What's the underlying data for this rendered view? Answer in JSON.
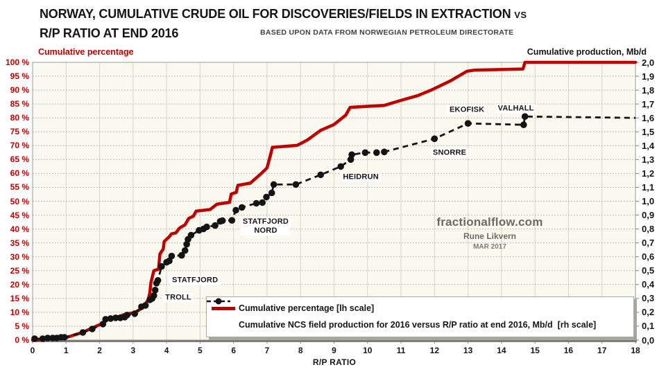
{
  "header": {
    "title_main": "NORWAY, CUMULATIVE CRUDE OIL FOR DISCOVERIES/FIELDS IN EXTRACTION",
    "title_vs": "VS",
    "title_line2": "R/P RATIO AT END 2016",
    "subtitle": "BASED UPON DATA FROM NORWEGIAN PETROLEUM DIRECTORATE"
  },
  "watermark": {
    "site": "fractionalflow.com",
    "author": "Rune Likvern",
    "date": "MAR 2017"
  },
  "legend": {
    "item1": "Cumulative percentage [lh scale]",
    "item2": "Cumulative NCS field production for 2016 versus R/P ratio at end 2016, Mb/d  [rh scale]"
  },
  "chart_data": {
    "type": "line",
    "title": "NORWAY, CUMULATIVE CRUDE OIL FOR DISCOVERIES/FIELDS IN EXTRACTION VS R/P RATIO AT END 2016",
    "grid": {
      "vertical": "solid",
      "horizontal": "dotted"
    },
    "legend_position": "bottom-right-inside",
    "x_axis": {
      "title": "R/P RATIO",
      "min": 0,
      "max": 18,
      "tick_step": 1,
      "tick_labels": [
        "0",
        "1",
        "2",
        "3",
        "4",
        "5",
        "6",
        "7",
        "8",
        "9",
        "10",
        "11",
        "12",
        "13",
        "14",
        "15",
        "16",
        "17",
        "18"
      ]
    },
    "y_left": {
      "title": "Cumulative percentage",
      "min": 0,
      "max": 100,
      "tick_step": 5,
      "color": "#c00000",
      "tick_labels": [
        "0 %",
        "5 %",
        "10 %",
        "15 %",
        "20 %",
        "25 %",
        "30 %",
        "35 %",
        "40 %",
        "45 %",
        "50 %",
        "55 %",
        "60 %",
        "65 %",
        "70 %",
        "75 %",
        "80 %",
        "85 %",
        "90 %",
        "95 %",
        "100 %"
      ]
    },
    "y_right": {
      "title": "Cumulative production, Mb/d",
      "min": 0,
      "max": 2,
      "tick_step": 0.1,
      "color": "#151515",
      "tick_labels": [
        "0,0",
        "0,1",
        "0,2",
        "0,3",
        "0,4",
        "0,5",
        "0,6",
        "0,7",
        "0,8",
        "0,9",
        "1,0",
        "1,1",
        "1,2",
        "1,3",
        "1,4",
        "1,5",
        "1,6",
        "1,7",
        "1,8",
        "1,9",
        "2,0"
      ]
    },
    "series": [
      {
        "name": "Cumulative percentage [lh scale]",
        "axis": "left",
        "color": "#c00000",
        "style": "solid",
        "points": [
          [
            0,
            0
          ],
          [
            0.5,
            0.4
          ],
          [
            1.0,
            0.9
          ],
          [
            1.5,
            2.8
          ],
          [
            1.9,
            5
          ],
          [
            2.1,
            6
          ],
          [
            2.17,
            7.6
          ],
          [
            2.5,
            8.2
          ],
          [
            2.8,
            9.4
          ],
          [
            3.05,
            9.9
          ],
          [
            3.2,
            11
          ],
          [
            3.35,
            12.6
          ],
          [
            3.45,
            14.6
          ],
          [
            3.5,
            17
          ],
          [
            3.53,
            20.5
          ],
          [
            3.58,
            23
          ],
          [
            3.62,
            25
          ],
          [
            3.76,
            25.5
          ],
          [
            3.8,
            31
          ],
          [
            3.9,
            32.8
          ],
          [
            3.93,
            35.5
          ],
          [
            4.08,
            37.2
          ],
          [
            4.14,
            38.2
          ],
          [
            4.28,
            38.6
          ],
          [
            4.38,
            40.3
          ],
          [
            4.55,
            41.5
          ],
          [
            4.66,
            43.8
          ],
          [
            4.8,
            44.6
          ],
          [
            4.88,
            46.4
          ],
          [
            5.3,
            47
          ],
          [
            5.5,
            48.9
          ],
          [
            5.88,
            49.6
          ],
          [
            5.93,
            52.6
          ],
          [
            6.08,
            53.2
          ],
          [
            6.13,
            55.7
          ],
          [
            6.5,
            56.5
          ],
          [
            6.83,
            60
          ],
          [
            7.0,
            62
          ],
          [
            7.07,
            65.1
          ],
          [
            7.16,
            69.4
          ],
          [
            7.9,
            70.1
          ],
          [
            8.2,
            72
          ],
          [
            8.6,
            75.5
          ],
          [
            9.0,
            77.6
          ],
          [
            9.35,
            81
          ],
          [
            9.48,
            83.8
          ],
          [
            10.2,
            84.3
          ],
          [
            10.5,
            84.5
          ],
          [
            11.0,
            86.3
          ],
          [
            11.5,
            88
          ],
          [
            11.9,
            90
          ],
          [
            12.5,
            93.5
          ],
          [
            12.97,
            96.8
          ],
          [
            13.2,
            97.2
          ],
          [
            14.64,
            97.6
          ],
          [
            14.7,
            100
          ],
          [
            18,
            100
          ]
        ]
      },
      {
        "name": "Cumulative NCS field production for 2016 versus R/P ratio at end 2016, Mb/d  [rh scale]",
        "axis": "right",
        "color": "#141414",
        "style": "dashed",
        "points": [
          [
            0.06,
            0.01
          ],
          [
            0.3,
            0.01
          ],
          [
            0.45,
            0.015
          ],
          [
            0.6,
            0.015
          ],
          [
            0.72,
            0.015
          ],
          [
            0.85,
            0.02
          ],
          [
            0.95,
            0.02
          ],
          [
            1.5,
            0.055
          ],
          [
            1.78,
            0.08
          ],
          [
            2.1,
            0.115
          ],
          [
            2.18,
            0.15
          ],
          [
            2.33,
            0.155
          ],
          [
            2.48,
            0.16
          ],
          [
            2.62,
            0.16
          ],
          [
            2.75,
            0.165
          ],
          [
            2.82,
            0.18
          ],
          [
            3.05,
            0.19
          ],
          [
            3.25,
            0.24
          ],
          [
            3.37,
            0.25
          ],
          [
            3.5,
            0.29
          ],
          [
            3.57,
            0.3
          ],
          [
            3.62,
            0.32
          ],
          [
            3.66,
            0.36
          ],
          [
            3.7,
            0.41
          ],
          [
            3.74,
            0.43
          ],
          [
            3.85,
            0.53
          ],
          [
            4.0,
            0.56
          ],
          [
            4.08,
            0.57
          ],
          [
            4.15,
            0.605
          ],
          [
            4.45,
            0.61
          ],
          [
            4.55,
            0.645
          ],
          [
            4.6,
            0.69
          ],
          [
            4.64,
            0.725
          ],
          [
            4.73,
            0.755
          ],
          [
            4.97,
            0.79
          ],
          [
            5.1,
            0.8
          ],
          [
            5.2,
            0.815
          ],
          [
            5.45,
            0.825
          ],
          [
            5.6,
            0.855
          ],
          [
            5.67,
            0.86
          ],
          [
            5.95,
            0.862
          ],
          [
            6.07,
            0.935
          ],
          [
            6.25,
            0.955
          ],
          [
            6.68,
            0.985
          ],
          [
            6.86,
            0.99
          ],
          [
            6.98,
            1.03
          ],
          [
            7.14,
            1.06
          ],
          [
            7.2,
            1.12
          ],
          [
            7.86,
            1.12
          ],
          [
            8.6,
            1.19
          ],
          [
            9.2,
            1.25
          ],
          [
            9.5,
            1.3
          ],
          [
            9.53,
            1.335
          ],
          [
            9.93,
            1.35
          ],
          [
            10.27,
            1.35
          ],
          [
            10.5,
            1.355
          ],
          [
            12.0,
            1.45
          ],
          [
            13.0,
            1.56
          ],
          [
            14.66,
            1.55
          ],
          [
            14.7,
            1.61
          ],
          [
            18,
            1.6
          ]
        ],
        "marker_points": [
          [
            0.06,
            0.01
          ],
          [
            0.3,
            0.01
          ],
          [
            0.45,
            0.015
          ],
          [
            0.6,
            0.015
          ],
          [
            0.72,
            0.015
          ],
          [
            0.85,
            0.02
          ],
          [
            0.95,
            0.02
          ],
          [
            1.5,
            0.055
          ],
          [
            1.78,
            0.08
          ],
          [
            2.1,
            0.115
          ],
          [
            2.18,
            0.15
          ],
          [
            2.33,
            0.155
          ],
          [
            2.48,
            0.16
          ],
          [
            2.62,
            0.16
          ],
          [
            2.75,
            0.165
          ],
          [
            2.82,
            0.18
          ],
          [
            3.05,
            0.19
          ],
          [
            3.25,
            0.24
          ],
          [
            3.37,
            0.25
          ],
          [
            3.5,
            0.29
          ],
          [
            3.57,
            0.3
          ],
          [
            3.62,
            0.32
          ],
          [
            3.66,
            0.36
          ],
          [
            3.7,
            0.41
          ],
          [
            3.74,
            0.43
          ],
          [
            3.85,
            0.53
          ],
          [
            4.0,
            0.56
          ],
          [
            4.08,
            0.57
          ],
          [
            4.15,
            0.605
          ],
          [
            4.45,
            0.61
          ],
          [
            4.55,
            0.645
          ],
          [
            4.6,
            0.69
          ],
          [
            4.64,
            0.725
          ],
          [
            4.73,
            0.755
          ],
          [
            4.97,
            0.79
          ],
          [
            5.1,
            0.8
          ],
          [
            5.2,
            0.815
          ],
          [
            5.45,
            0.825
          ],
          [
            5.6,
            0.855
          ],
          [
            5.67,
            0.86
          ],
          [
            5.95,
            0.862
          ],
          [
            6.07,
            0.935
          ],
          [
            6.25,
            0.955
          ],
          [
            6.68,
            0.985
          ],
          [
            6.86,
            0.99
          ],
          [
            6.98,
            1.03
          ],
          [
            7.14,
            1.06
          ],
          [
            7.2,
            1.12
          ],
          [
            7.86,
            1.12
          ],
          [
            8.6,
            1.19
          ],
          [
            9.2,
            1.25
          ],
          [
            9.5,
            1.3
          ],
          [
            9.53,
            1.335
          ],
          [
            9.93,
            1.35
          ],
          [
            10.27,
            1.35
          ],
          [
            10.5,
            1.355
          ],
          [
            12.0,
            1.45
          ],
          [
            13.0,
            1.56
          ],
          [
            14.66,
            1.55
          ],
          [
            14.7,
            1.61
          ]
        ]
      }
    ],
    "annotations": [
      {
        "lines": [
          "STATFJORD"
        ],
        "x": 4.85,
        "y_pct": 21.4
      },
      {
        "lines": [
          "TROLL"
        ],
        "x": 4.35,
        "y_pct": 15.2
      },
      {
        "lines": [
          "STATFJORD",
          "NORD"
        ],
        "x": 6.96,
        "y_pct": 40.9
      },
      {
        "lines": [
          "HEIDRUN"
        ],
        "x": 9.8,
        "y_pct": 58.6
      },
      {
        "lines": [
          "SNORRE"
        ],
        "x": 12.45,
        "y_pct": 67.3
      },
      {
        "lines": [
          "EKOFISK"
        ],
        "x": 12.97,
        "y_pct": 82.8
      },
      {
        "lines": [
          "VALHALL"
        ],
        "x": 14.43,
        "y_pct": 83.3
      }
    ]
  }
}
